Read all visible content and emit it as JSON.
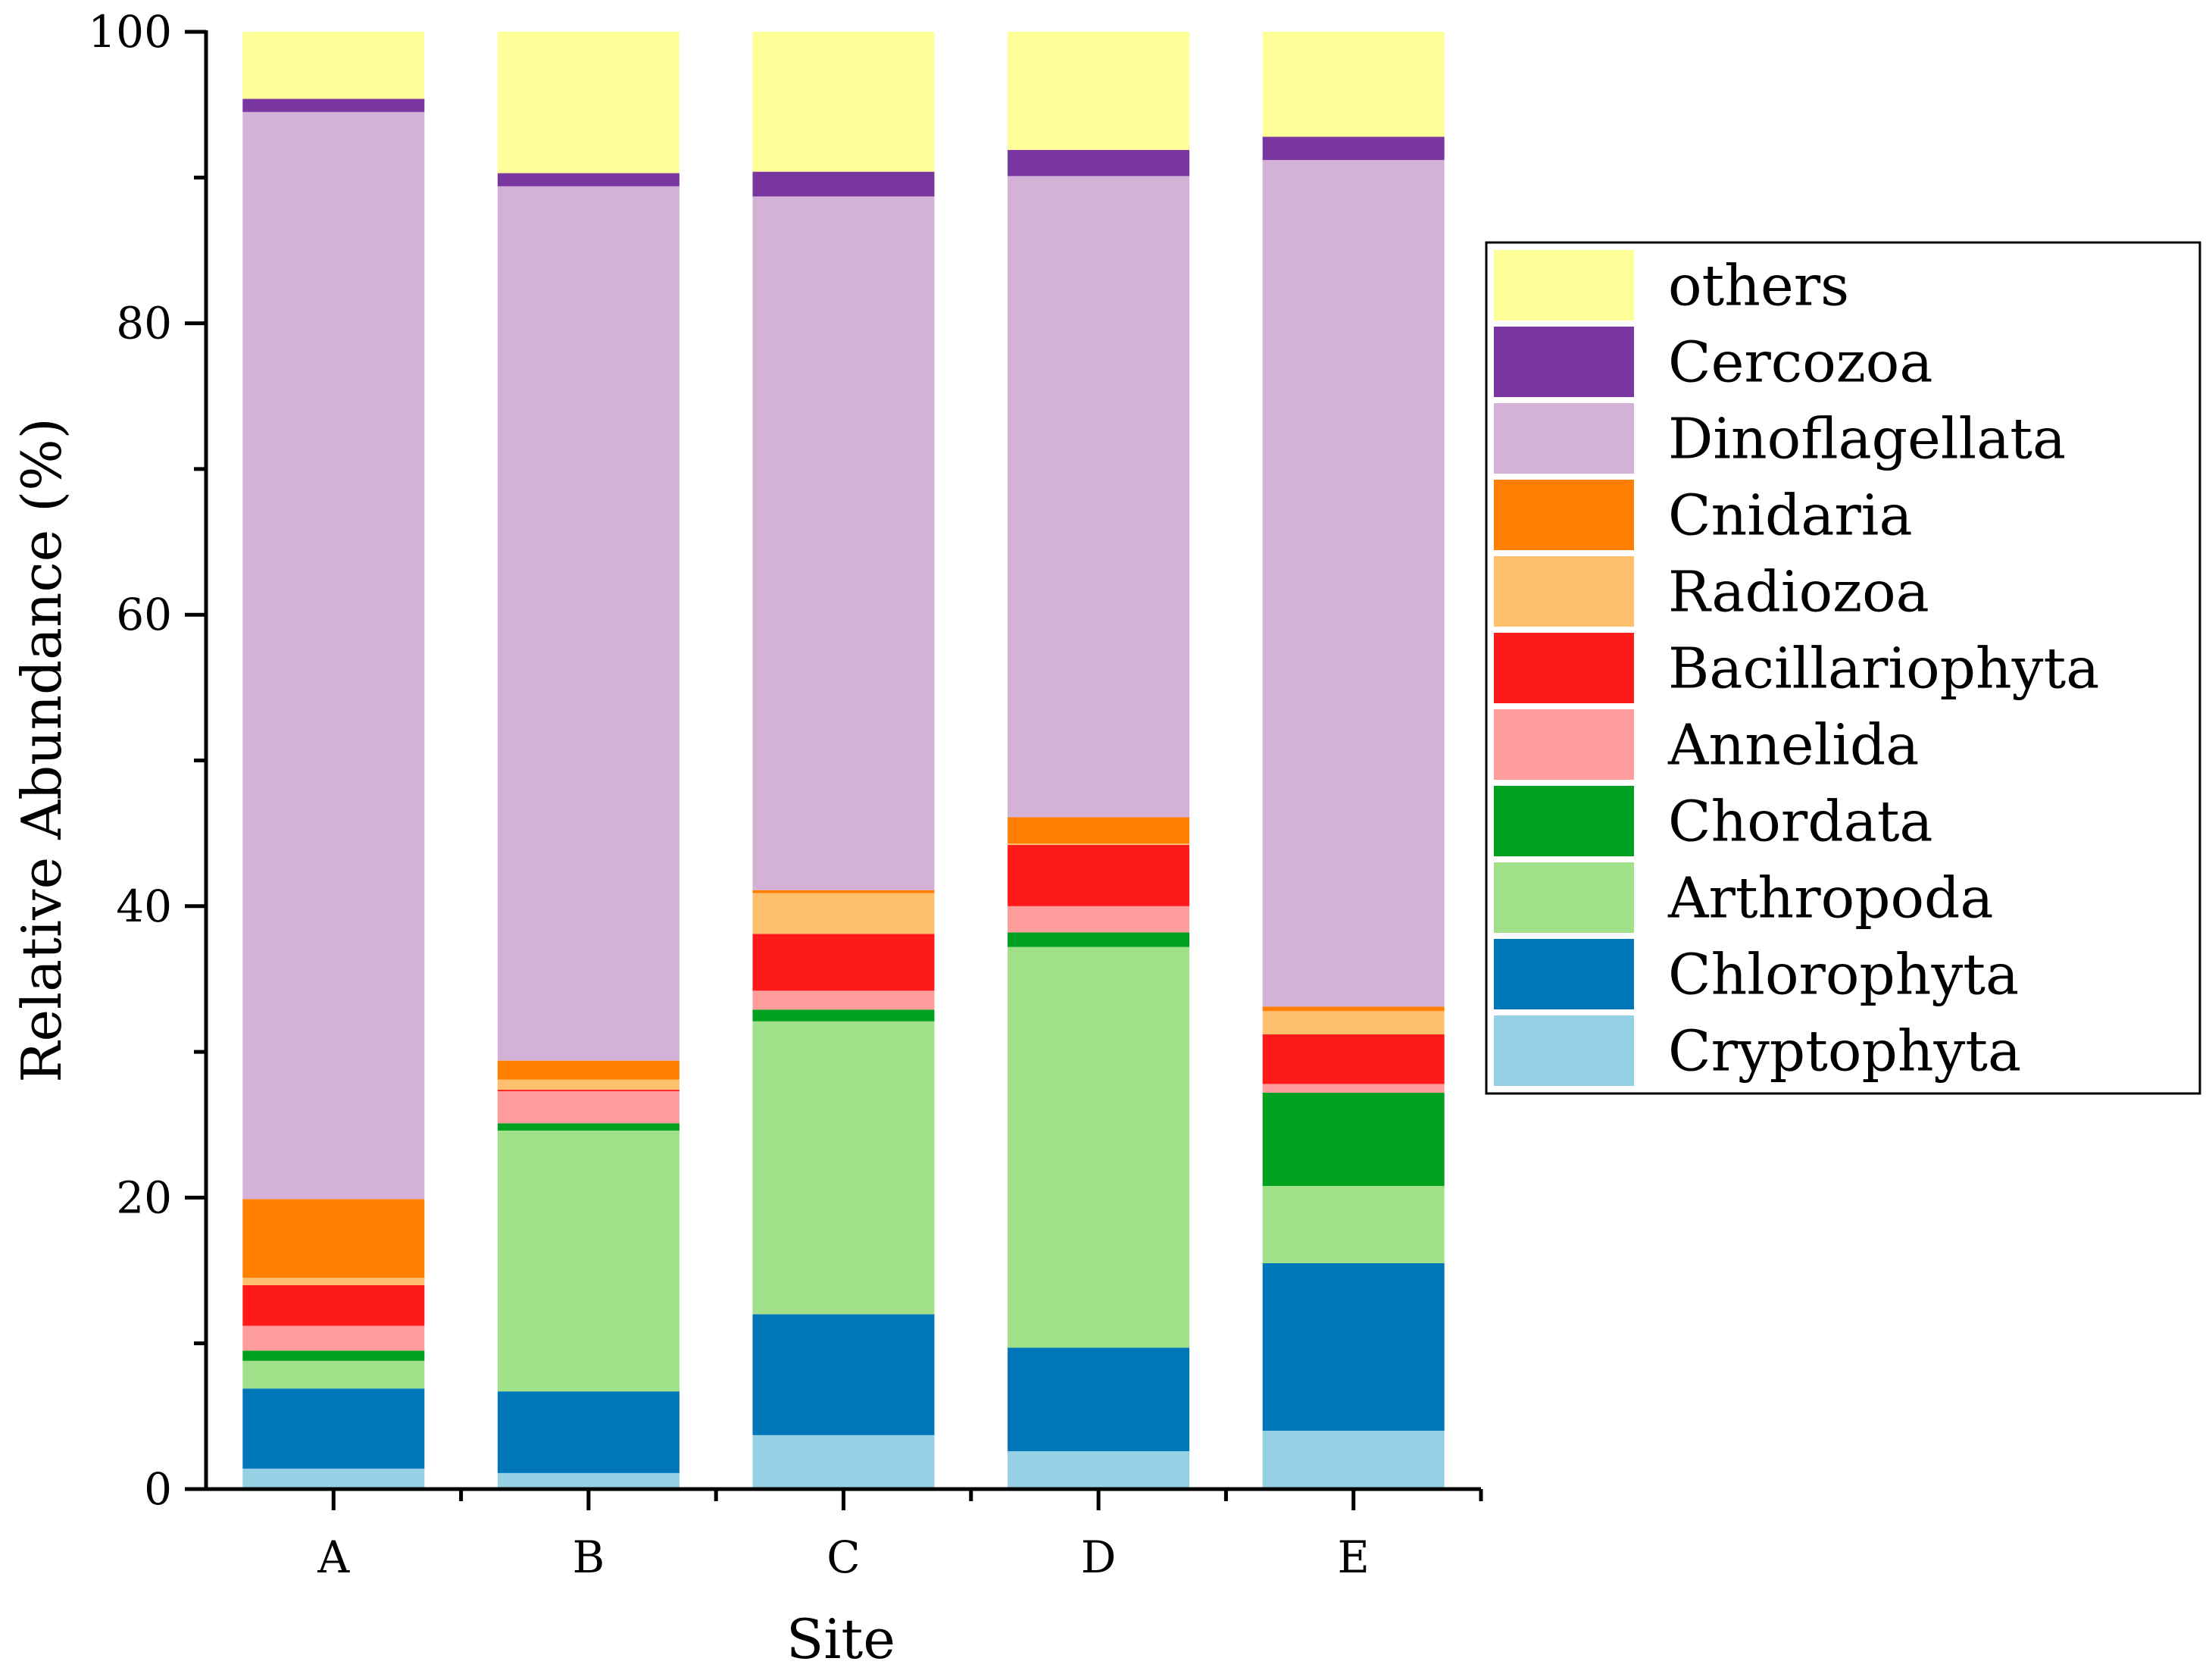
{
  "chart_data": {
    "type": "bar",
    "stacked": true,
    "title": "",
    "xlabel": "Site",
    "ylabel": "Relative Abundance (%)",
    "ylim": [
      0,
      100
    ],
    "yticks": [
      "0",
      "20",
      "40",
      "60",
      "80",
      "100"
    ],
    "categories": [
      "A",
      "B",
      "C",
      "D",
      "E"
    ],
    "legend_position": "right",
    "series": [
      {
        "name": "Cryptophyta",
        "color": "#96D0E4",
        "values": [
          1.4,
          1.1,
          3.7,
          2.6,
          4.0
        ]
      },
      {
        "name": "Chlorophyta",
        "color": "#0077B8",
        "values": [
          5.5,
          5.6,
          8.3,
          7.1,
          11.5
        ]
      },
      {
        "name": "Arthropoda",
        "color": "#A0E088",
        "values": [
          1.9,
          17.9,
          20.1,
          27.5,
          5.3
        ]
      },
      {
        "name": "Chordata",
        "color": "#00A020",
        "values": [
          0.7,
          0.5,
          0.8,
          1.0,
          6.4
        ]
      },
      {
        "name": "Annelida",
        "color": "#FF9C9C",
        "values": [
          1.7,
          2.2,
          1.3,
          1.8,
          0.6
        ]
      },
      {
        "name": "Bacillariophyta",
        "color": "#FF1A1A",
        "values": [
          2.8,
          0.1,
          3.9,
          4.2,
          3.4
        ]
      },
      {
        "name": "Radiozoa",
        "color": "#FFC06E",
        "values": [
          0.5,
          0.7,
          2.8,
          0.1,
          1.6
        ]
      },
      {
        "name": "Cnidaria",
        "color": "#FF7F00",
        "values": [
          5.4,
          1.3,
          0.2,
          1.8,
          0.3
        ]
      },
      {
        "name": "Dinoflagellata",
        "color": "#D4B2D8",
        "values": [
          74.6,
          60.0,
          47.6,
          44.0,
          58.1
        ]
      },
      {
        "name": "Cercozoa",
        "color": "#7A36A0",
        "values": [
          0.9,
          0.9,
          1.7,
          1.8,
          1.6
        ]
      },
      {
        "name": "others",
        "color": "#FFFF99",
        "values": [
          4.6,
          9.7,
          9.6,
          8.1,
          7.2
        ]
      }
    ]
  }
}
